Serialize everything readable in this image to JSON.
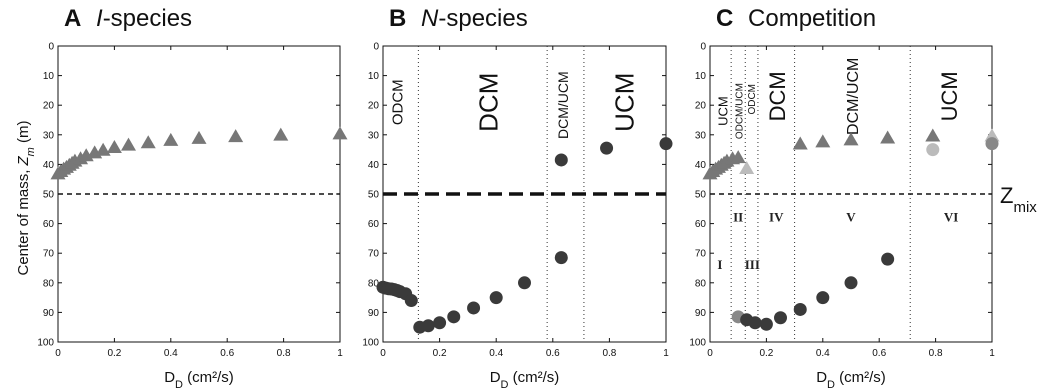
{
  "chart_data": [
    {
      "type": "scatter",
      "panel_letter": "A",
      "title": "I-species",
      "xlabel": "D_D (cm²/s)",
      "ylabel": "Center of mass, Z_m (m)",
      "xlim": [
        0,
        1
      ],
      "ylim": [
        100,
        0
      ],
      "y_reversed": true,
      "xticks": [
        "0",
        "0.2",
        "0.4",
        "0.6",
        "0.8",
        "1"
      ],
      "yticks": [
        "0",
        "10",
        "20",
        "30",
        "40",
        "50",
        "60",
        "70",
        "80",
        "90",
        "100"
      ],
      "hline": {
        "y": 50,
        "style": "dashed"
      },
      "grid": false,
      "series": [
        {
          "marker": "triangle",
          "color": "#777777",
          "points": [
            [
              0.0,
              43.3
            ],
            [
              0.01,
              42.5
            ],
            [
              0.02,
              41.7
            ],
            [
              0.03,
              41.1
            ],
            [
              0.04,
              40.4
            ],
            [
              0.05,
              39.7
            ],
            [
              0.06,
              39.0
            ],
            [
              0.08,
              38.2
            ],
            [
              0.1,
              37.2
            ],
            [
              0.13,
              36.2
            ],
            [
              0.16,
              35.3
            ],
            [
              0.2,
              34.4
            ],
            [
              0.25,
              33.6
            ],
            [
              0.32,
              32.8
            ],
            [
              0.4,
              32.0
            ],
            [
              0.5,
              31.3
            ],
            [
              0.63,
              30.7
            ],
            [
              0.79,
              30.2
            ],
            [
              1.0,
              29.8
            ]
          ]
        }
      ]
    },
    {
      "type": "scatter",
      "panel_letter": "B",
      "title": "N-species",
      "xlabel": "D_D (cm²/s)",
      "xlim": [
        0,
        1
      ],
      "ylim": [
        100,
        0
      ],
      "y_reversed": true,
      "xticks": [
        "0",
        "0.2",
        "0.4",
        "0.6",
        "0.8",
        "1"
      ],
      "yticks": [
        "0",
        "10",
        "20",
        "30",
        "40",
        "50",
        "60",
        "70",
        "80",
        "90",
        "100"
      ],
      "hline": {
        "y": 50,
        "style": "dashed-bold"
      },
      "grid": false,
      "vlines": [
        0.125,
        0.58,
        0.71
      ],
      "regions": [
        {
          "label": "ODCM",
          "x": 0.055,
          "y": 19,
          "size": 15
        },
        {
          "label": "DCM",
          "x": 0.38,
          "y": 19,
          "size": 26
        },
        {
          "label": "DCM/UCM",
          "x": 0.64,
          "y": 20,
          "size": 14
        },
        {
          "label": "UCM",
          "x": 0.86,
          "y": 19,
          "size": 26
        }
      ],
      "series": [
        {
          "marker": "circle",
          "color": "#3a3a3a",
          "points": [
            [
              0.0,
              81.5
            ],
            [
              0.01,
              81.8
            ],
            [
              0.02,
              82.0
            ],
            [
              0.03,
              82.1
            ],
            [
              0.04,
              82.3
            ],
            [
              0.05,
              82.6
            ],
            [
              0.06,
              83.0
            ],
            [
              0.08,
              83.7
            ],
            [
              0.1,
              86.0
            ],
            [
              0.13,
              95.0
            ],
            [
              0.16,
              94.5
            ],
            [
              0.2,
              93.5
            ],
            [
              0.25,
              91.5
            ],
            [
              0.32,
              88.5
            ],
            [
              0.4,
              85.0
            ],
            [
              0.5,
              80.0
            ],
            [
              0.63,
              71.5
            ],
            [
              0.63,
              38.5
            ],
            [
              0.79,
              34.5
            ],
            [
              1.0,
              33.0
            ]
          ]
        }
      ]
    },
    {
      "type": "scatter",
      "panel_letter": "C",
      "title": "Competition",
      "xlabel": "D_D (cm²/s)",
      "xlim": [
        0,
        1
      ],
      "ylim": [
        100,
        0
      ],
      "y_reversed": true,
      "xticks": [
        "0",
        "0.2",
        "0.4",
        "0.6",
        "0.8",
        "1"
      ],
      "yticks": [
        "0",
        "10",
        "20",
        "30",
        "40",
        "50",
        "60",
        "70",
        "80",
        "90",
        "100"
      ],
      "hline": {
        "y": 50,
        "style": "dashed"
      },
      "hline_label": "Z_mix",
      "grid": false,
      "vlines": [
        0.075,
        0.125,
        0.17,
        0.3,
        0.71
      ],
      "regions": [
        {
          "label": "UCM",
          "x": 0.05,
          "y": 22,
          "size": 13
        },
        {
          "label": "ODCM/UCM",
          "x": 0.105,
          "y": 22,
          "size": 10
        },
        {
          "label": "ODCM",
          "x": 0.15,
          "y": 18,
          "size": 10
        },
        {
          "label": "DCM",
          "x": 0.245,
          "y": 17,
          "size": 22
        },
        {
          "label": "DCM/UCM",
          "x": 0.51,
          "y": 17,
          "size": 16
        },
        {
          "label": "UCM",
          "x": 0.855,
          "y": 17,
          "size": 22
        }
      ],
      "roman_labels": [
        {
          "label": "I",
          "x": 0.035,
          "y": 74
        },
        {
          "label": "II",
          "x": 0.1,
          "y": 58
        },
        {
          "label": "III",
          "x": 0.15,
          "y": 74
        },
        {
          "label": "IV",
          "x": 0.235,
          "y": 58
        },
        {
          "label": "V",
          "x": 0.5,
          "y": 58
        },
        {
          "label": "VI",
          "x": 0.855,
          "y": 58
        }
      ],
      "series": [
        {
          "marker": "triangle",
          "color": "#777777",
          "points": [
            [
              0.0,
              43.3
            ],
            [
              0.01,
              42.5
            ],
            [
              0.02,
              41.7
            ],
            [
              0.03,
              41.1
            ],
            [
              0.04,
              40.4
            ],
            [
              0.05,
              39.7
            ],
            [
              0.06,
              39.0
            ],
            [
              0.08,
              38.2
            ],
            [
              0.1,
              37.8
            ],
            [
              0.32,
              33.2
            ],
            [
              0.4,
              32.5
            ],
            [
              0.5,
              31.8
            ],
            [
              0.63,
              31.2
            ],
            [
              0.79,
              30.5
            ]
          ]
        },
        {
          "marker": "triangle",
          "color": "#bbbbbb",
          "points": [
            [
              0.13,
              41.5
            ],
            [
              1.0,
              30.5
            ]
          ]
        },
        {
          "marker": "circle",
          "color": "#bbbbbb",
          "points": [
            [
              0.79,
              35.0
            ]
          ]
        },
        {
          "marker": "circle",
          "color": "#888888",
          "points": [
            [
              0.1,
              91.5
            ],
            [
              1.0,
              33.0
            ]
          ]
        },
        {
          "marker": "circle",
          "color": "#3a3a3a",
          "points": [
            [
              0.13,
              92.5
            ],
            [
              0.16,
              93.5
            ],
            [
              0.2,
              94.0
            ],
            [
              0.25,
              91.8
            ],
            [
              0.32,
              89.0
            ],
            [
              0.4,
              85.0
            ],
            [
              0.5,
              80.0
            ],
            [
              0.63,
              72.0
            ]
          ]
        }
      ]
    }
  ]
}
